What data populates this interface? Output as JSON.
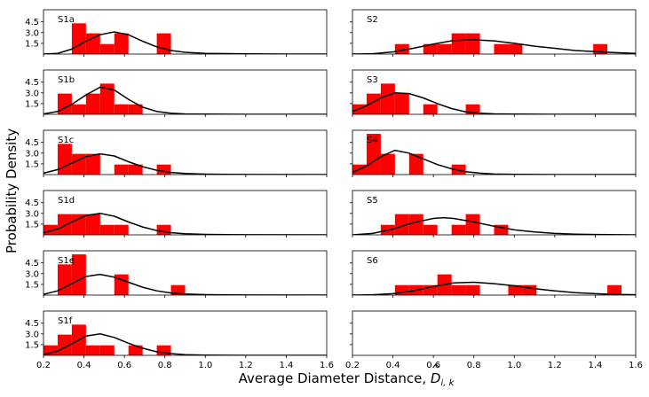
{
  "figure": {
    "ylabel": "Probability Density",
    "xlabel_text": "Average Diameter Distance, ",
    "xlabel_symbol": "D",
    "xlabel_subscript": "i, k"
  },
  "chart_data": [
    {
      "type": "bar",
      "panel": "S1a",
      "xlim": [
        0.2,
        1.6
      ],
      "ylim": [
        0,
        6.2
      ],
      "yticks": [
        1.5,
        3.0,
        4.5
      ],
      "xticks": [],
      "bin_width": 0.07,
      "histogram": [
        {
          "x": 0.34,
          "height": 4.3
        },
        {
          "x": 0.41,
          "height": 2.9
        },
        {
          "x": 0.48,
          "height": 1.4
        },
        {
          "x": 0.55,
          "height": 2.9
        },
        {
          "x": 0.76,
          "height": 2.9
        }
      ],
      "curve": {
        "x": [
          0.2,
          0.27,
          0.34,
          0.41,
          0.48,
          0.55,
          0.62,
          0.69,
          0.76,
          0.83,
          0.9,
          1.0,
          1.2,
          1.4,
          1.6
        ],
        "y": [
          0.0,
          0.1,
          0.7,
          1.8,
          2.7,
          3.1,
          2.7,
          1.8,
          1.0,
          0.5,
          0.25,
          0.1,
          0.02,
          0.0,
          0.0
        ]
      }
    },
    {
      "type": "bar",
      "panel": "S2",
      "xlim": [
        0.2,
        1.6
      ],
      "ylim": [
        0,
        6.2
      ],
      "yticks": [
        1.5,
        3.0,
        4.5
      ],
      "xticks": [],
      "bin_width": 0.07,
      "histogram": [
        {
          "x": 0.41,
          "height": 1.4
        },
        {
          "x": 0.55,
          "height": 1.4
        },
        {
          "x": 0.62,
          "height": 1.4
        },
        {
          "x": 0.69,
          "height": 2.9
        },
        {
          "x": 0.76,
          "height": 2.9
        },
        {
          "x": 0.9,
          "height": 1.4
        },
        {
          "x": 0.97,
          "height": 1.4
        },
        {
          "x": 1.39,
          "height": 1.4
        }
      ],
      "curve": {
        "x": [
          0.2,
          0.3,
          0.4,
          0.5,
          0.6,
          0.7,
          0.8,
          0.9,
          1.0,
          1.1,
          1.2,
          1.3,
          1.4,
          1.5,
          1.6
        ],
        "y": [
          0.0,
          0.05,
          0.3,
          0.8,
          1.4,
          1.9,
          2.0,
          1.85,
          1.5,
          1.1,
          0.8,
          0.5,
          0.35,
          0.2,
          0.1
        ]
      }
    },
    {
      "type": "bar",
      "panel": "S1b",
      "xlim": [
        0.2,
        1.6
      ],
      "ylim": [
        0,
        6.2
      ],
      "yticks": [
        1.5,
        3.0,
        4.5
      ],
      "xticks": [],
      "bin_width": 0.07,
      "histogram": [
        {
          "x": 0.27,
          "height": 2.9
        },
        {
          "x": 0.34,
          "height": 1.4
        },
        {
          "x": 0.41,
          "height": 2.9
        },
        {
          "x": 0.48,
          "height": 4.3
        },
        {
          "x": 0.55,
          "height": 1.4
        },
        {
          "x": 0.62,
          "height": 1.4
        }
      ],
      "curve": {
        "x": [
          0.2,
          0.27,
          0.34,
          0.41,
          0.48,
          0.55,
          0.62,
          0.69,
          0.76,
          0.83,
          0.9,
          1.0,
          1.2,
          1.6
        ],
        "y": [
          0.05,
          0.4,
          1.4,
          2.7,
          3.8,
          3.4,
          2.1,
          1.0,
          0.4,
          0.15,
          0.05,
          0.02,
          0.0,
          0.0
        ]
      }
    },
    {
      "type": "bar",
      "panel": "S3",
      "xlim": [
        0.2,
        1.6
      ],
      "ylim": [
        0,
        6.2
      ],
      "yticks": [
        1.5,
        3.0,
        4.5
      ],
      "xticks": [],
      "bin_width": 0.07,
      "histogram": [
        {
          "x": 0.2,
          "height": 1.4
        },
        {
          "x": 0.27,
          "height": 2.9
        },
        {
          "x": 0.34,
          "height": 4.3
        },
        {
          "x": 0.41,
          "height": 2.9
        },
        {
          "x": 0.55,
          "height": 1.4
        },
        {
          "x": 0.76,
          "height": 1.4
        }
      ],
      "curve": {
        "x": [
          0.2,
          0.27,
          0.34,
          0.41,
          0.48,
          0.55,
          0.62,
          0.69,
          0.76,
          0.83,
          0.9,
          1.0,
          1.2,
          1.6
        ],
        "y": [
          0.4,
          1.2,
          2.3,
          3.0,
          2.9,
          2.3,
          1.5,
          0.8,
          0.35,
          0.15,
          0.06,
          0.02,
          0.0,
          0.0
        ]
      }
    },
    {
      "type": "bar",
      "panel": "S1c",
      "xlim": [
        0.2,
        1.6
      ],
      "ylim": [
        0,
        6.2
      ],
      "yticks": [
        1.5,
        3.0,
        4.5
      ],
      "xticks": [],
      "bin_width": 0.07,
      "histogram": [
        {
          "x": 0.27,
          "height": 4.3
        },
        {
          "x": 0.34,
          "height": 2.9
        },
        {
          "x": 0.41,
          "height": 2.9
        },
        {
          "x": 0.55,
          "height": 1.4
        },
        {
          "x": 0.62,
          "height": 1.4
        },
        {
          "x": 0.76,
          "height": 1.4
        }
      ],
      "curve": {
        "x": [
          0.2,
          0.27,
          0.34,
          0.41,
          0.48,
          0.55,
          0.62,
          0.69,
          0.76,
          0.83,
          0.9,
          1.0,
          1.2,
          1.6
        ],
        "y": [
          0.2,
          0.7,
          1.6,
          2.5,
          2.9,
          2.6,
          1.8,
          1.1,
          0.6,
          0.3,
          0.15,
          0.06,
          0.01,
          0.0
        ]
      }
    },
    {
      "type": "bar",
      "panel": "S4",
      "xlim": [
        0.2,
        1.6
      ],
      "ylim": [
        0,
        6.2
      ],
      "yticks": [
        1.5,
        3.0,
        4.5
      ],
      "xticks": [],
      "bin_width": 0.07,
      "histogram": [
        {
          "x": 0.2,
          "height": 1.4
        },
        {
          "x": 0.27,
          "height": 5.7
        },
        {
          "x": 0.34,
          "height": 2.9
        },
        {
          "x": 0.48,
          "height": 2.9
        },
        {
          "x": 0.69,
          "height": 1.4
        }
      ],
      "curve": {
        "x": [
          0.2,
          0.27,
          0.34,
          0.41,
          0.48,
          0.55,
          0.62,
          0.69,
          0.76,
          0.83,
          0.9,
          1.0,
          1.2,
          1.6
        ],
        "y": [
          0.3,
          1.2,
          2.5,
          3.4,
          3.0,
          2.2,
          1.4,
          0.8,
          0.4,
          0.2,
          0.08,
          0.03,
          0.0,
          0.0
        ]
      }
    },
    {
      "type": "bar",
      "panel": "S1d",
      "xlim": [
        0.2,
        1.6
      ],
      "ylim": [
        0,
        6.2
      ],
      "yticks": [
        1.5,
        3.0,
        4.5
      ],
      "xticks": [],
      "bin_width": 0.07,
      "histogram": [
        {
          "x": 0.2,
          "height": 1.4
        },
        {
          "x": 0.27,
          "height": 2.9
        },
        {
          "x": 0.34,
          "height": 2.9
        },
        {
          "x": 0.41,
          "height": 2.9
        },
        {
          "x": 0.48,
          "height": 1.4
        },
        {
          "x": 0.55,
          "height": 1.4
        },
        {
          "x": 0.76,
          "height": 1.4
        }
      ],
      "curve": {
        "x": [
          0.2,
          0.27,
          0.34,
          0.41,
          0.48,
          0.55,
          0.62,
          0.69,
          0.76,
          0.83,
          0.9,
          1.0,
          1.2,
          1.6
        ],
        "y": [
          0.3,
          0.8,
          1.8,
          2.7,
          3.0,
          2.6,
          1.8,
          1.1,
          0.6,
          0.3,
          0.15,
          0.06,
          0.01,
          0.0
        ]
      }
    },
    {
      "type": "bar",
      "panel": "S5",
      "xlim": [
        0.2,
        1.6
      ],
      "ylim": [
        0,
        6.2
      ],
      "yticks": [
        1.5,
        3.0,
        4.5
      ],
      "xticks": [],
      "bin_width": 0.07,
      "histogram": [
        {
          "x": 0.34,
          "height": 1.4
        },
        {
          "x": 0.41,
          "height": 2.9
        },
        {
          "x": 0.48,
          "height": 2.9
        },
        {
          "x": 0.55,
          "height": 1.4
        },
        {
          "x": 0.69,
          "height": 1.4
        },
        {
          "x": 0.76,
          "height": 2.9
        },
        {
          "x": 0.9,
          "height": 1.4
        }
      ],
      "curve": {
        "x": [
          0.2,
          0.3,
          0.4,
          0.5,
          0.6,
          0.65,
          0.7,
          0.8,
          0.9,
          1.0,
          1.1,
          1.2,
          1.3,
          1.4,
          1.6
        ],
        "y": [
          0.0,
          0.2,
          0.8,
          1.7,
          2.3,
          2.4,
          2.3,
          1.8,
          1.2,
          0.7,
          0.4,
          0.2,
          0.1,
          0.05,
          0.0
        ]
      }
    },
    {
      "type": "bar",
      "panel": "S1e",
      "xlim": [
        0.2,
        1.6
      ],
      "ylim": [
        0,
        6.2
      ],
      "yticks": [
        1.5,
        3.0,
        4.5
      ],
      "xticks": [],
      "bin_width": 0.07,
      "histogram": [
        {
          "x": 0.27,
          "height": 4.3
        },
        {
          "x": 0.34,
          "height": 5.7
        },
        {
          "x": 0.55,
          "height": 2.9
        },
        {
          "x": 0.83,
          "height": 1.4
        }
      ],
      "curve": {
        "x": [
          0.2,
          0.27,
          0.34,
          0.41,
          0.48,
          0.55,
          0.62,
          0.69,
          0.76,
          0.83,
          0.9,
          1.0,
          1.2,
          1.6
        ],
        "y": [
          0.1,
          0.6,
          1.6,
          2.6,
          2.9,
          2.5,
          1.8,
          1.1,
          0.6,
          0.3,
          0.15,
          0.06,
          0.01,
          0.0
        ]
      }
    },
    {
      "type": "bar",
      "panel": "S6",
      "xlim": [
        0.2,
        1.6
      ],
      "ylim": [
        0,
        6.2
      ],
      "yticks": [
        1.5,
        3.0,
        4.5
      ],
      "xticks": [],
      "bin_width": 0.07,
      "histogram": [
        {
          "x": 0.41,
          "height": 1.4
        },
        {
          "x": 0.48,
          "height": 1.4
        },
        {
          "x": 0.55,
          "height": 1.4
        },
        {
          "x": 0.62,
          "height": 2.9
        },
        {
          "x": 0.69,
          "height": 1.4
        },
        {
          "x": 0.76,
          "height": 1.4
        },
        {
          "x": 0.97,
          "height": 1.4
        },
        {
          "x": 1.04,
          "height": 1.4
        },
        {
          "x": 1.46,
          "height": 1.4
        }
      ],
      "curve": {
        "x": [
          0.2,
          0.3,
          0.4,
          0.5,
          0.6,
          0.7,
          0.8,
          0.9,
          1.0,
          1.1,
          1.2,
          1.3,
          1.4,
          1.5,
          1.6
        ],
        "y": [
          0.0,
          0.05,
          0.2,
          0.6,
          1.2,
          1.7,
          1.8,
          1.6,
          1.3,
          0.9,
          0.6,
          0.35,
          0.2,
          0.1,
          0.05
        ]
      }
    },
    {
      "type": "bar",
      "panel": "S1f",
      "xlim": [
        0.2,
        1.6
      ],
      "ylim": [
        0,
        6.2
      ],
      "yticks": [
        1.5,
        3.0,
        4.5
      ],
      "xticks": [
        0.2,
        0.4,
        0.6,
        0.8,
        1.0,
        1.2,
        1.4,
        1.6
      ],
      "bin_width": 0.07,
      "histogram": [
        {
          "x": 0.2,
          "height": 1.4
        },
        {
          "x": 0.27,
          "height": 2.9
        },
        {
          "x": 0.34,
          "height": 4.3
        },
        {
          "x": 0.41,
          "height": 1.4
        },
        {
          "x": 0.48,
          "height": 1.4
        },
        {
          "x": 0.62,
          "height": 1.4
        },
        {
          "x": 0.76,
          "height": 1.4
        }
      ],
      "curve": {
        "x": [
          0.2,
          0.27,
          0.34,
          0.41,
          0.48,
          0.55,
          0.62,
          0.69,
          0.76,
          0.83,
          0.9,
          1.0,
          1.2,
          1.6
        ],
        "y": [
          0.1,
          0.6,
          1.6,
          2.7,
          3.0,
          2.5,
          1.7,
          1.0,
          0.5,
          0.25,
          0.1,
          0.04,
          0.0,
          0.0
        ]
      }
    },
    {
      "type": "bar",
      "panel": "",
      "xlim": [
        0.2,
        1.6
      ],
      "ylim": [
        0,
        6.2
      ],
      "yticks": [
        1.5,
        3.0,
        4.5
      ],
      "xticks": [
        0.2,
        0.4,
        0.6,
        0.8,
        1.0,
        1.2,
        1.4,
        1.6
      ],
      "empty": true,
      "histogram": [],
      "curve": {
        "x": [],
        "y": []
      }
    }
  ]
}
